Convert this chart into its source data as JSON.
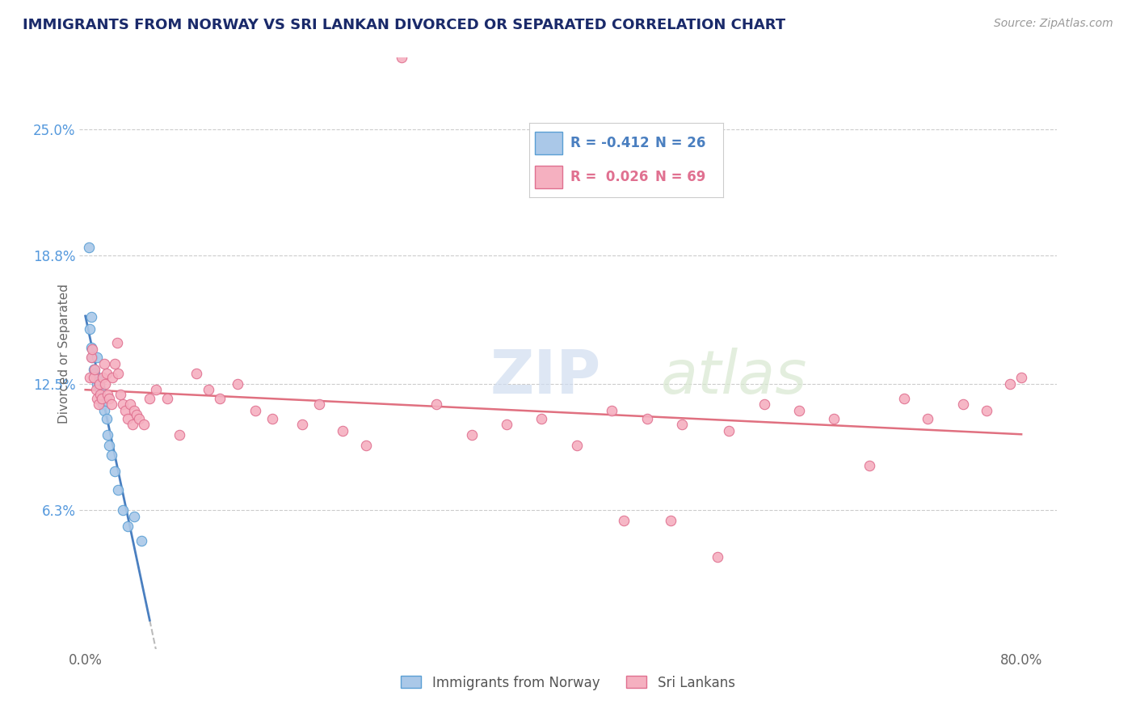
{
  "title": "IMMIGRANTS FROM NORWAY VS SRI LANKAN DIVORCED OR SEPARATED CORRELATION CHART",
  "source_text": "Source: ZipAtlas.com",
  "ylabel": "Divorced or Separated",
  "watermark_zip": "ZIP",
  "watermark_atlas": "atlas",
  "xlim_min": -0.005,
  "xlim_max": 0.83,
  "ylim_min": -0.005,
  "ylim_max": 0.285,
  "xtick_positions": [
    0.0,
    0.8
  ],
  "xticklabels": [
    "0.0%",
    "80.0%"
  ],
  "ytick_positions": [
    0.063,
    0.125,
    0.188,
    0.25
  ],
  "ytick_labels": [
    "6.3%",
    "12.5%",
    "18.8%",
    "25.0%"
  ],
  "color_norway_fill": "#aac8e8",
  "color_norway_edge": "#5a9fd4",
  "color_srilanka_fill": "#f5b0c0",
  "color_srilanka_edge": "#e07090",
  "color_norway_line": "#4a7fc0",
  "color_srilanka_line": "#e07080",
  "color_dashed": "#bbbbbb",
  "color_grid": "#cccccc",
  "color_title": "#1a2a6a",
  "color_ytick": "#5599dd",
  "color_xtick": "#666666",
  "color_ylabel": "#666666",
  "color_source": "#999999",
  "norway_x": [
    0.003,
    0.004,
    0.005,
    0.005,
    0.006,
    0.007,
    0.008,
    0.009,
    0.01,
    0.01,
    0.011,
    0.012,
    0.013,
    0.014,
    0.015,
    0.016,
    0.018,
    0.019,
    0.02,
    0.022,
    0.025,
    0.028,
    0.032,
    0.036,
    0.042,
    0.048
  ],
  "norway_y": [
    0.192,
    0.152,
    0.158,
    0.143,
    0.138,
    0.132,
    0.13,
    0.128,
    0.125,
    0.138,
    0.126,
    0.124,
    0.122,
    0.118,
    0.115,
    0.112,
    0.108,
    0.1,
    0.095,
    0.09,
    0.082,
    0.073,
    0.063,
    0.055,
    0.06,
    0.048
  ],
  "srilanka_x": [
    0.004,
    0.005,
    0.006,
    0.007,
    0.008,
    0.009,
    0.01,
    0.011,
    0.012,
    0.013,
    0.014,
    0.015,
    0.016,
    0.017,
    0.018,
    0.019,
    0.02,
    0.022,
    0.023,
    0.025,
    0.027,
    0.028,
    0.03,
    0.032,
    0.034,
    0.036,
    0.038,
    0.04,
    0.042,
    0.044,
    0.046,
    0.05,
    0.055,
    0.06,
    0.07,
    0.08,
    0.095,
    0.105,
    0.115,
    0.13,
    0.145,
    0.16,
    0.185,
    0.2,
    0.22,
    0.24,
    0.27,
    0.3,
    0.33,
    0.36,
    0.39,
    0.42,
    0.45,
    0.48,
    0.51,
    0.55,
    0.58,
    0.61,
    0.64,
    0.67,
    0.7,
    0.72,
    0.75,
    0.77,
    0.79,
    0.8,
    0.46,
    0.5,
    0.54
  ],
  "srilanka_y": [
    0.128,
    0.138,
    0.142,
    0.128,
    0.132,
    0.122,
    0.118,
    0.115,
    0.125,
    0.12,
    0.118,
    0.128,
    0.135,
    0.125,
    0.13,
    0.12,
    0.118,
    0.115,
    0.128,
    0.135,
    0.145,
    0.13,
    0.12,
    0.115,
    0.112,
    0.108,
    0.115,
    0.105,
    0.112,
    0.11,
    0.108,
    0.105,
    0.118,
    0.122,
    0.118,
    0.1,
    0.13,
    0.122,
    0.118,
    0.125,
    0.112,
    0.108,
    0.105,
    0.115,
    0.102,
    0.095,
    0.285,
    0.115,
    0.1,
    0.105,
    0.108,
    0.095,
    0.112,
    0.108,
    0.105,
    0.102,
    0.115,
    0.112,
    0.108,
    0.085,
    0.118,
    0.108,
    0.115,
    0.112,
    0.125,
    0.128,
    0.058,
    0.058,
    0.04
  ],
  "legend_line1_r": "R = -0.412",
  "legend_line1_n": "N = 26",
  "legend_line2_r": "R =  0.026",
  "legend_line2_n": "N = 69",
  "legend_label1": "Immigrants from Norway",
  "legend_label2": "Sri Lankans"
}
